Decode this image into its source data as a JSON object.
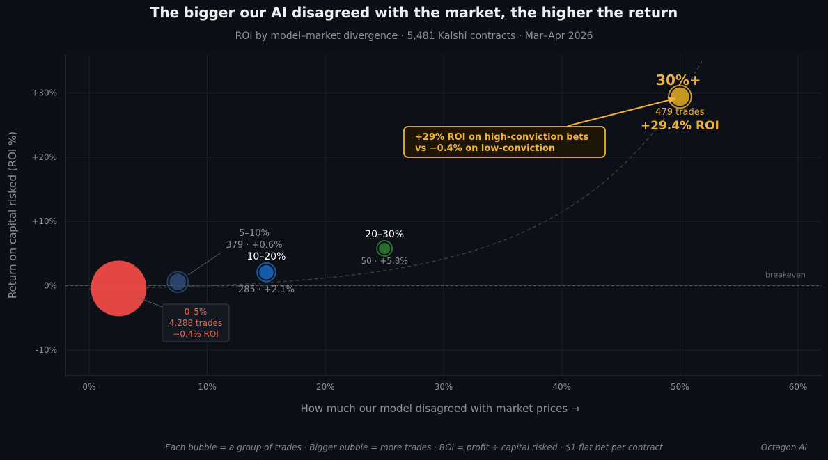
{
  "chart_data": {
    "type": "scatter",
    "title": "The bigger our AI disagreed with the market, the higher the return",
    "subtitle": "ROI by model–market divergence  ·  5,481 Kalshi contracts  ·  Mar–Apr 2026",
    "xlabel": "How much our model disagreed with market prices  →",
    "ylabel": "Return on capital risked  (ROI %)",
    "xlim": [
      -2,
      62
    ],
    "ylim": [
      -14,
      36
    ],
    "x_ticks": [
      0,
      10,
      20,
      30,
      40,
      50,
      60
    ],
    "x_tick_labels": [
      "0%",
      "10%",
      "20%",
      "30%",
      "40%",
      "50%",
      "60%"
    ],
    "y_ticks": [
      -10,
      0,
      10,
      20,
      30
    ],
    "y_tick_labels": [
      "-10%",
      "0%",
      "+10%",
      "+20%",
      "+30%"
    ],
    "grid": true,
    "breakeven_label": "breakeven",
    "points": [
      {
        "bucket": "0–5%",
        "x": 2.5,
        "roi": -0.4,
        "trades": 4288,
        "trades_label": "4,288 trades",
        "roi_label": "−0.4% ROI",
        "color": "#ef4b47"
      },
      {
        "bucket": "5–10%",
        "x": 7.5,
        "roi": 0.6,
        "trades": 379,
        "detail_label": "379  ·  +0.6%",
        "color": "#2d4a75"
      },
      {
        "bucket": "10–20%",
        "x": 15,
        "roi": 2.1,
        "trades": 285,
        "detail_label": "285  ·  +2.1%",
        "color": "#1565c0"
      },
      {
        "bucket": "20–30%",
        "x": 25,
        "roi": 5.8,
        "trades": 50,
        "detail_label": "50  ·  +5.8%",
        "color": "#2e7d32"
      },
      {
        "bucket": "30%+",
        "x": 50,
        "roi": 29.4,
        "trades": 479,
        "trades_label": "479 trades",
        "roi_label": "+29.4% ROI",
        "color": "#e0a820"
      }
    ],
    "annotation": {
      "line1": "+29% ROI on high-conviction bets",
      "line2": "vs −0.4% on low-conviction"
    },
    "colors": {
      "highlight": "#f0b23a",
      "loss": "#f0634a"
    }
  },
  "footnote": "Each bubble = a group of trades  ·  Bigger bubble = more trades  ·  ROI = profit ÷ capital risked  ·  $1 flat bet per contract",
  "brand": "Octagon AI"
}
